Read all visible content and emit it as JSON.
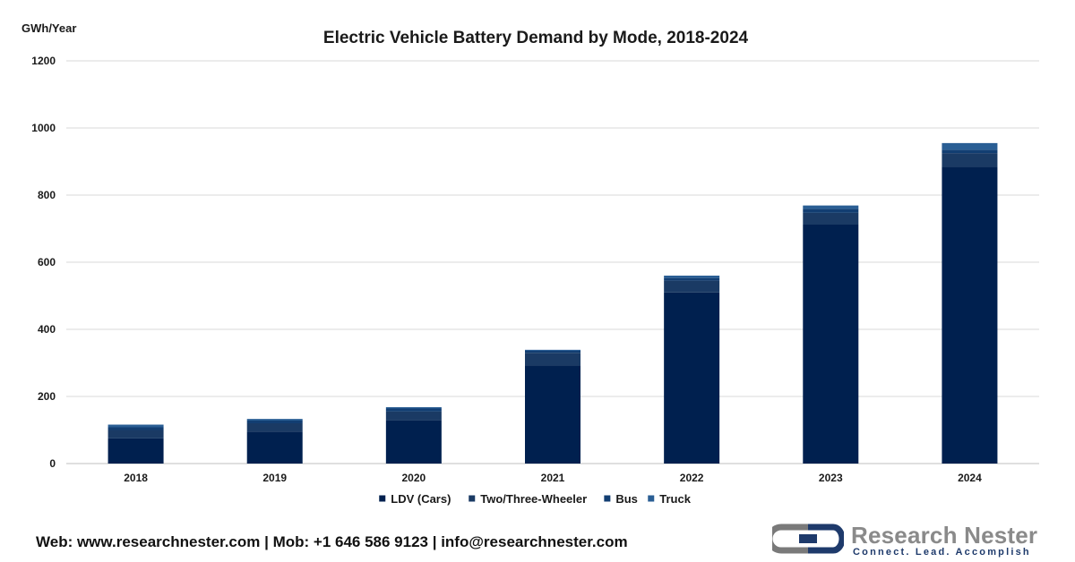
{
  "chart_data": {
    "type": "bar",
    "stacked": true,
    "title": "Electric Vehicle Battery Demand by Mode, 2018-2024",
    "ylabel": "GWh/Year",
    "xlabel": "",
    "ylim": [
      0,
      1200
    ],
    "yticks": [
      0,
      200,
      400,
      600,
      800,
      1000,
      1200
    ],
    "grid": true,
    "legend_position": "bottom",
    "categories": [
      "2018",
      "2019",
      "2020",
      "2021",
      "2022",
      "2023",
      "2024"
    ],
    "series": [
      {
        "name": "LDV (Cars)",
        "color": "#00204f",
        "values": [
          75,
          95,
          130,
          293,
          510,
          712,
          885
        ]
      },
      {
        "name": "Two/Three-Wheeler",
        "color": "#1a3a64",
        "values": [
          25,
          25,
          25,
          37,
          35,
          35,
          40
        ]
      },
      {
        "name": "Bus",
        "color": "#123e72",
        "values": [
          8,
          8,
          9,
          6,
          8,
          12,
          10
        ]
      },
      {
        "name": "Truck",
        "color": "#2a5e94",
        "values": [
          8,
          5,
          4,
          3,
          7,
          10,
          20
        ]
      }
    ]
  },
  "footer": {
    "contact": "Web: www.researchnester.com | Mob: +1 646 586 9123 | info@researchnester.com"
  },
  "logo": {
    "name": "Research Nester",
    "tagline": "Connect. Lead. Accomplish"
  }
}
